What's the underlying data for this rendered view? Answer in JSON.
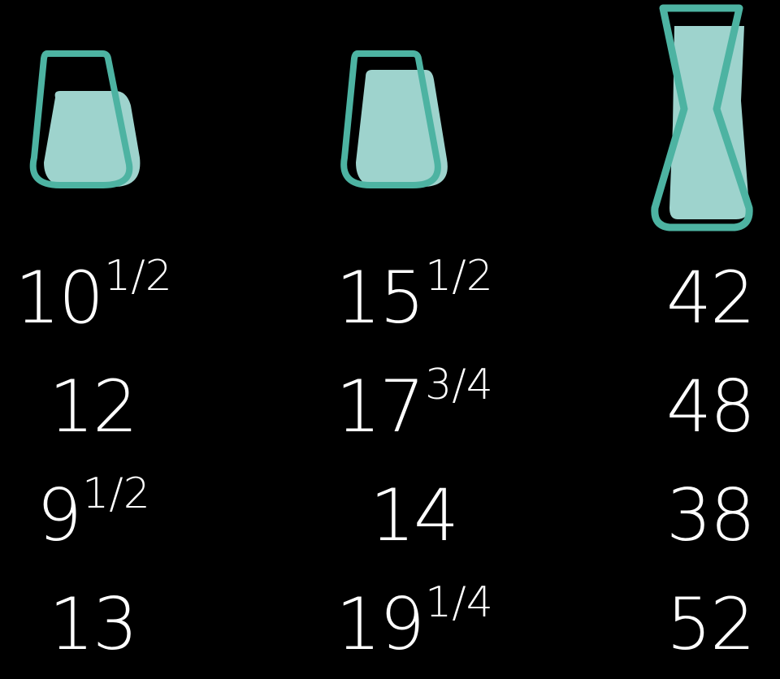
{
  "colors": {
    "background": "#000000",
    "glass_outline": "#4db3a2",
    "glass_fill": "#9ed3cd",
    "text": "#ffffff"
  },
  "icons": [
    "short-glass-icon",
    "tall-tumbler-icon",
    "carafe-icon"
  ],
  "columns": [
    {
      "icon": "short-glass-icon",
      "rows": [
        {
          "whole": "10",
          "frac": "1/2"
        },
        {
          "whole": "12",
          "frac": ""
        },
        {
          "whole": "9",
          "frac": "1/2"
        },
        {
          "whole": "13",
          "frac": ""
        }
      ]
    },
    {
      "icon": "tall-tumbler-icon",
      "rows": [
        {
          "whole": "15",
          "frac": "1/2"
        },
        {
          "whole": "17",
          "frac": "3/4"
        },
        {
          "whole": "14",
          "frac": ""
        },
        {
          "whole": "19",
          "frac": "1/4"
        }
      ]
    },
    {
      "icon": "carafe-icon",
      "rows": [
        {
          "whole": "42",
          "frac": ""
        },
        {
          "whole": "48",
          "frac": ""
        },
        {
          "whole": "38",
          "frac": ""
        },
        {
          "whole": "52",
          "frac": ""
        }
      ]
    }
  ]
}
